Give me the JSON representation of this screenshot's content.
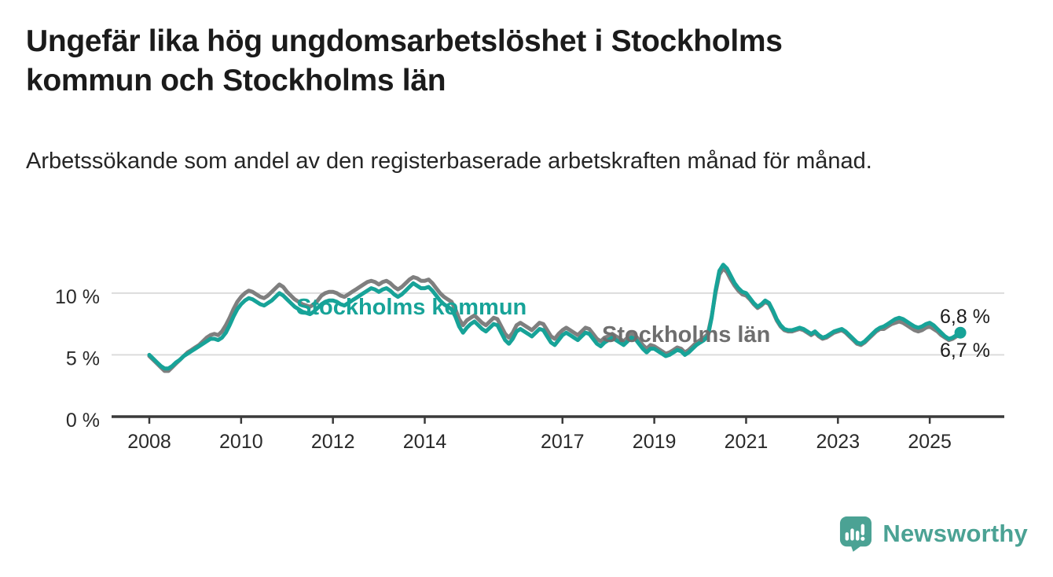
{
  "header": {
    "title": "Ungefär lika hög ungdomsarbetslöshet i Stockholms kommun och Stockholms län",
    "subtitle": "Arbetssökande som andel av den registerbaserade arbetskraften månad för månad."
  },
  "chart_data": {
    "type": "line",
    "unit": "%",
    "frequency": "monthly",
    "x_start": "2008-01",
    "x_end": "2025-09",
    "grid": "horizontal",
    "ylim": [
      0,
      12.8
    ],
    "x_axis": {
      "tick_years": [
        2008,
        2010,
        2012,
        2014,
        2017,
        2019,
        2021,
        2023,
        2025
      ],
      "tick_labels": [
        "2008",
        "2010",
        "2012",
        "2014",
        "2017",
        "2019",
        "2021",
        "2023",
        "2025"
      ]
    },
    "y_axis": {
      "ticks": [
        {
          "value": 0,
          "label": "0 %"
        },
        {
          "value": 5,
          "label": "5 %"
        },
        {
          "value": 10,
          "label": "10 %"
        }
      ]
    },
    "series": [
      {
        "name": "Stockholms kommun",
        "color": "#17a398",
        "end_label": "6,8 %",
        "last_value": 6.8,
        "values": [
          5.0,
          4.7,
          4.4,
          4.1,
          3.9,
          3.9,
          4.1,
          4.4,
          4.6,
          4.9,
          5.1,
          5.3,
          5.5,
          5.7,
          5.9,
          6.1,
          6.3,
          6.3,
          6.2,
          6.4,
          6.8,
          7.4,
          8.1,
          8.7,
          9.1,
          9.4,
          9.6,
          9.5,
          9.3,
          9.1,
          9.0,
          9.2,
          9.4,
          9.7,
          10.0,
          9.8,
          9.5,
          9.2,
          8.9,
          8.7,
          8.5,
          8.4,
          8.3,
          8.5,
          8.8,
          9.1,
          9.3,
          9.4,
          9.4,
          9.3,
          9.1,
          9.0,
          9.2,
          9.4,
          9.6,
          9.8,
          10.0,
          10.2,
          10.4,
          10.3,
          10.1,
          10.3,
          10.4,
          10.2,
          9.9,
          9.7,
          9.9,
          10.2,
          10.5,
          10.8,
          10.6,
          10.4,
          10.4,
          10.5,
          10.2,
          9.8,
          9.4,
          9.1,
          8.9,
          8.7,
          8.1,
          7.3,
          6.8,
          7.2,
          7.5,
          7.7,
          7.4,
          7.1,
          6.9,
          7.2,
          7.5,
          7.4,
          6.8,
          6.2,
          5.9,
          6.3,
          6.9,
          7.1,
          6.9,
          6.7,
          6.5,
          6.8,
          7.1,
          7.0,
          6.5,
          6.0,
          5.8,
          6.2,
          6.6,
          6.8,
          6.6,
          6.4,
          6.2,
          6.5,
          6.8,
          6.7,
          6.3,
          5.9,
          5.7,
          6.0,
          6.2,
          6.4,
          6.2,
          6.0,
          5.8,
          6.1,
          6.4,
          6.3,
          5.9,
          5.5,
          5.2,
          5.5,
          5.5,
          5.3,
          5.1,
          4.9,
          5.0,
          5.2,
          5.4,
          5.3,
          5.0,
          5.2,
          5.5,
          5.8,
          6.0,
          6.2,
          6.5,
          8.0,
          10.2,
          11.8,
          12.3,
          12.0,
          11.4,
          10.8,
          10.4,
          10.1,
          10.0,
          9.6,
          9.2,
          8.9,
          9.1,
          9.4,
          9.2,
          8.6,
          7.9,
          7.4,
          7.1,
          7.0,
          7.0,
          7.1,
          7.2,
          7.1,
          6.9,
          6.7,
          6.9,
          6.6,
          6.4,
          6.5,
          6.7,
          6.9,
          7.0,
          7.1,
          6.9,
          6.6,
          6.3,
          6.0,
          5.9,
          6.1,
          6.4,
          6.7,
          7.0,
          7.2,
          7.3,
          7.5,
          7.7,
          7.9,
          8.0,
          7.9,
          7.7,
          7.5,
          7.3,
          7.2,
          7.3,
          7.5,
          7.6,
          7.4,
          7.1,
          6.8,
          6.5,
          6.3,
          6.4,
          6.6,
          6.8
        ]
      },
      {
        "name": "Stockholms län",
        "color": "#7f7f7f",
        "end_label": "6,7 %",
        "last_value": 6.7,
        "values": [
          4.9,
          4.6,
          4.3,
          4.0,
          3.7,
          3.7,
          4.0,
          4.3,
          4.6,
          4.9,
          5.2,
          5.4,
          5.6,
          5.8,
          6.1,
          6.4,
          6.6,
          6.7,
          6.6,
          6.9,
          7.4,
          8.0,
          8.7,
          9.3,
          9.7,
          10.0,
          10.2,
          10.1,
          9.9,
          9.7,
          9.6,
          9.8,
          10.1,
          10.4,
          10.7,
          10.5,
          10.1,
          9.8,
          9.5,
          9.3,
          9.1,
          9.0,
          8.9,
          9.1,
          9.4,
          9.8,
          10.0,
          10.1,
          10.1,
          10.0,
          9.8,
          9.7,
          9.9,
          10.1,
          10.3,
          10.5,
          10.7,
          10.9,
          11.0,
          10.9,
          10.7,
          10.9,
          11.0,
          10.8,
          10.5,
          10.3,
          10.5,
          10.8,
          11.1,
          11.3,
          11.2,
          11.0,
          11.0,
          11.1,
          10.8,
          10.4,
          10.0,
          9.7,
          9.5,
          9.3,
          8.7,
          7.9,
          7.4,
          7.8,
          8.0,
          8.2,
          7.9,
          7.6,
          7.4,
          7.7,
          8.0,
          7.9,
          7.3,
          6.7,
          6.4,
          6.8,
          7.4,
          7.6,
          7.4,
          7.2,
          7.0,
          7.3,
          7.6,
          7.5,
          7.0,
          6.5,
          6.3,
          6.7,
          7.0,
          7.2,
          7.0,
          6.8,
          6.6,
          6.9,
          7.2,
          7.1,
          6.7,
          6.3,
          6.1,
          6.4,
          6.5,
          6.7,
          6.5,
          6.3,
          6.1,
          6.4,
          6.7,
          6.6,
          6.2,
          5.8,
          5.5,
          5.8,
          5.7,
          5.5,
          5.3,
          5.1,
          5.2,
          5.4,
          5.6,
          5.5,
          5.2,
          5.4,
          5.7,
          6.0,
          6.2,
          6.4,
          6.7,
          8.1,
          10.0,
          11.5,
          12.0,
          11.7,
          11.1,
          10.6,
          10.2,
          9.9,
          9.8,
          9.5,
          9.1,
          8.8,
          9.0,
          9.3,
          9.1,
          8.5,
          7.8,
          7.3,
          7.0,
          6.9,
          6.9,
          7.0,
          7.1,
          7.0,
          6.8,
          6.6,
          6.8,
          6.5,
          6.3,
          6.4,
          6.6,
          6.8,
          6.9,
          7.0,
          6.8,
          6.5,
          6.2,
          5.9,
          5.8,
          6.0,
          6.3,
          6.6,
          6.9,
          7.1,
          7.1,
          7.3,
          7.5,
          7.6,
          7.7,
          7.6,
          7.4,
          7.2,
          7.0,
          6.9,
          7.0,
          7.2,
          7.3,
          7.1,
          6.9,
          6.6,
          6.4,
          6.2,
          6.3,
          6.5,
          6.7
        ]
      }
    ],
    "colors": {
      "gridline": "#dcdcdc",
      "axis": "#3a3a3a",
      "tick_text": "#2a2a2a"
    }
  },
  "footer": {
    "brand": "Newsworthy",
    "brand_color": "#4ba294",
    "logo_icon": "newsworthy-speech-bubble-bar-chart-icon"
  }
}
